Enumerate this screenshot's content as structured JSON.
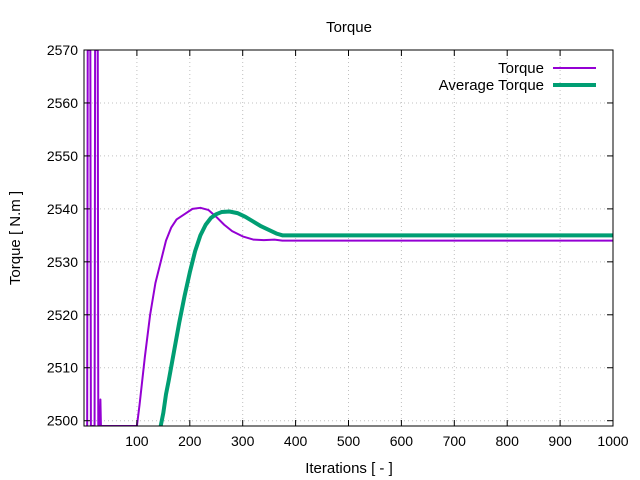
{
  "chart_data": {
    "type": "line",
    "title": "Torque",
    "xlabel": "Iterations [ - ]",
    "ylabel": "Torque [ N.m ]",
    "xlim": [
      0,
      1000
    ],
    "ylim": [
      2499,
      2570
    ],
    "xticks": [
      100,
      200,
      300,
      400,
      500,
      600,
      700,
      800,
      900,
      1000
    ],
    "yticks": [
      2500,
      2510,
      2520,
      2530,
      2540,
      2550,
      2560,
      2570
    ],
    "grid": true,
    "legend_position": "top-right",
    "series": [
      {
        "name": "Torque",
        "color": "#9400d3",
        "points": [
          [
            6,
            2499
          ],
          [
            7,
            2570
          ],
          [
            12,
            2570
          ],
          [
            13,
            2499
          ],
          [
            20,
            2499
          ],
          [
            21,
            2570
          ],
          [
            26,
            2570
          ],
          [
            27,
            2499
          ],
          [
            30,
            2499
          ],
          [
            31,
            2504
          ],
          [
            32,
            2499
          ],
          [
            100,
            2499
          ],
          [
            105,
            2503
          ],
          [
            115,
            2512
          ],
          [
            125,
            2520
          ],
          [
            135,
            2526
          ],
          [
            145,
            2530
          ],
          [
            155,
            2534
          ],
          [
            165,
            2536.5
          ],
          [
            175,
            2538
          ],
          [
            190,
            2539
          ],
          [
            205,
            2540
          ],
          [
            220,
            2540.2
          ],
          [
            235,
            2539.8
          ],
          [
            250,
            2538.5
          ],
          [
            265,
            2537
          ],
          [
            280,
            2535.8
          ],
          [
            300,
            2534.8
          ],
          [
            320,
            2534.2
          ],
          [
            340,
            2534.1
          ],
          [
            360,
            2534.2
          ],
          [
            375,
            2534
          ],
          [
            400,
            2534
          ],
          [
            1000,
            2534
          ]
        ]
      },
      {
        "name": "Average Torque",
        "color": "#009e73",
        "points": [
          [
            145,
            2499
          ],
          [
            150,
            2501.5
          ],
          [
            155,
            2505
          ],
          [
            160,
            2507.5
          ],
          [
            170,
            2513
          ],
          [
            180,
            2518.5
          ],
          [
            190,
            2523.5
          ],
          [
            200,
            2528
          ],
          [
            210,
            2532
          ],
          [
            220,
            2535
          ],
          [
            230,
            2537
          ],
          [
            240,
            2538.3
          ],
          [
            250,
            2539
          ],
          [
            260,
            2539.4
          ],
          [
            275,
            2539.5
          ],
          [
            290,
            2539.2
          ],
          [
            305,
            2538.5
          ],
          [
            320,
            2537.6
          ],
          [
            335,
            2536.7
          ],
          [
            350,
            2536
          ],
          [
            365,
            2535.3
          ],
          [
            375,
            2535
          ],
          [
            400,
            2535
          ],
          [
            1000,
            2535
          ]
        ]
      }
    ]
  }
}
